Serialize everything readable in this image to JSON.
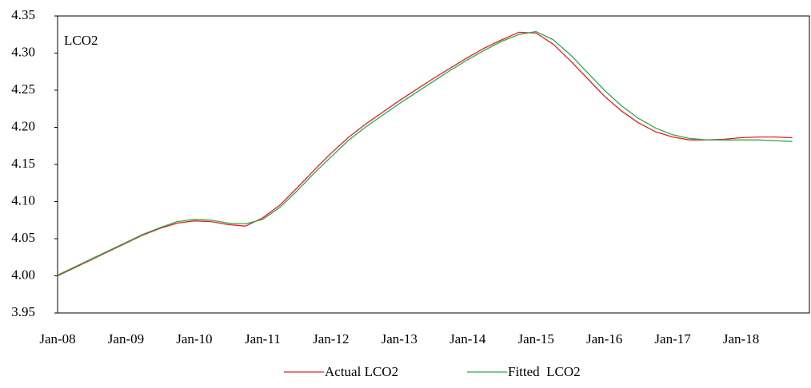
{
  "chart_data": {
    "type": "line",
    "annotation": "LCO2",
    "categories": [
      "Jan-08",
      null,
      null,
      null,
      "Jan-09",
      null,
      null,
      null,
      "Jan-10",
      null,
      null,
      null,
      "Jan-11",
      null,
      null,
      null,
      "Jan-12",
      null,
      null,
      null,
      "Jan-13",
      null,
      null,
      null,
      "Jan-14",
      null,
      null,
      null,
      "Jan-15",
      null,
      null,
      null,
      "Jan-16",
      null,
      null,
      null,
      "Jan-17",
      null,
      null,
      null,
      "Jan-18",
      null,
      null,
      null
    ],
    "series": [
      {
        "name": "Actual LCO2",
        "color": "#e8201e",
        "values": [
          4.0,
          4.011,
          4.022,
          4.033,
          4.044,
          4.055,
          4.064,
          4.071,
          4.074,
          4.073,
          4.069,
          4.067,
          4.078,
          4.095,
          4.118,
          4.142,
          4.165,
          4.186,
          4.204,
          4.22,
          4.236,
          4.251,
          4.266,
          4.28,
          4.294,
          4.307,
          4.318,
          4.328,
          4.327,
          4.312,
          4.29,
          4.266,
          4.242,
          4.222,
          4.206,
          4.194,
          4.187,
          4.183,
          4.183,
          4.184,
          4.186,
          4.187,
          4.187,
          4.186
        ]
      },
      {
        "name": "Fitted  LCO2",
        "color": "#2ea84a",
        "values": [
          4.001,
          4.012,
          4.023,
          4.034,
          4.045,
          4.056,
          4.065,
          4.073,
          4.076,
          4.075,
          4.071,
          4.07,
          4.076,
          4.092,
          4.114,
          4.138,
          4.16,
          4.182,
          4.2,
          4.216,
          4.232,
          4.247,
          4.262,
          4.277,
          4.291,
          4.304,
          4.316,
          4.325,
          4.329,
          4.318,
          4.298,
          4.274,
          4.25,
          4.229,
          4.212,
          4.199,
          4.19,
          4.185,
          4.183,
          4.183,
          4.183,
          4.183,
          4.182,
          4.181
        ]
      }
    ],
    "ylim": [
      3.95,
      4.35
    ],
    "yticks": [
      3.95,
      {
        "value": 4.0,
        "label": "4.00"
      },
      4.05,
      {
        "value": 4.1,
        "label": "4.10"
      },
      4.15,
      {
        "value": 4.2,
        "label": "4.20"
      },
      4.25,
      {
        "value": 4.3,
        "label": "4.30"
      },
      4.35
    ],
    "legend": "bottom"
  }
}
